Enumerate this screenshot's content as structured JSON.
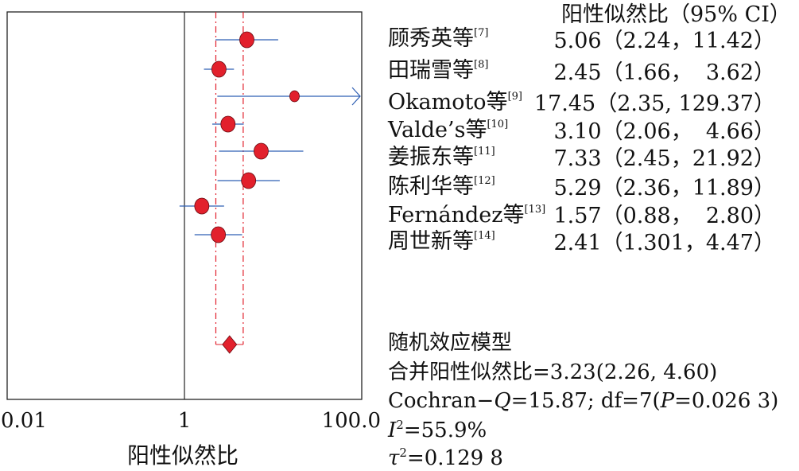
{
  "header": {
    "ci_title": "阳性似然比（95% CI）"
  },
  "xaxis": {
    "label": "阳性似然比",
    "ticks": [
      "0.01",
      "1",
      "100.0"
    ]
  },
  "studies": [
    {
      "name": "顾秀英等",
      "ref": "[7]",
      "plr": "5.06",
      "ci_text": "（2.24，11.42）"
    },
    {
      "name": "田瑞雪等",
      "ref": "[8]",
      "plr": "2.45",
      "ci_text": "（1.66，  3.62）"
    },
    {
      "name": "Okamoto等",
      "ref": "[9]",
      "plr": "17.45",
      "ci_text": "（2.35, 129.37）"
    },
    {
      "name": "Valde’s等",
      "ref": "[10]",
      "plr": "3.10",
      "ci_text": "（2.06，  4.66）"
    },
    {
      "name": "姜振东等",
      "ref": "[11]",
      "plr": "7.33",
      "ci_text": "（2.45，21.92）"
    },
    {
      "name": "陈利华等",
      "ref": "[12]",
      "plr": "5.29",
      "ci_text": "（2.36，11.89）"
    },
    {
      "name": "Fernández等",
      "ref": "[13]",
      "plr": "1.57",
      "ci_text": "（0.88，  2.80）"
    },
    {
      "name": "周世新等",
      "ref": "[14]",
      "plr": "2.41",
      "ci_text": "（1.301，4.47）"
    }
  ],
  "summary": {
    "model": "随机效应模型",
    "pooled_label": "合并阳性似然比",
    "pooled_text": "=3.23(2.26, 4.60)",
    "cochran_text": "Cochran−",
    "q_symbol": "Q",
    "q_text": "=15.87; df=7(",
    "p_symbol": "P",
    "p_text": "=0.026 3)",
    "i2_symbol": "I",
    "i2_text": "=55.9%",
    "tau2_symbol": "τ",
    "tau2_text": "=0.129 8",
    "sq": "2"
  },
  "colors": {
    "marker": "#e2202c",
    "ci_line": "#2f5fb3",
    "pooled_line": "#e2202c",
    "axis": "#222222"
  },
  "chart_data": {
    "type": "scatter",
    "title": "",
    "xlabel": "阳性似然比",
    "ylabel": "",
    "xscale": "log",
    "xlim": [
      0.01,
      100
    ],
    "xticks": [
      0.01,
      1,
      100
    ],
    "reference_line": 1,
    "categories": [
      "顾秀英等",
      "田瑞雪等",
      "Okamoto等",
      "Valde’s等",
      "姜振东等",
      "陈利华等",
      "Fernández等",
      "周世新等"
    ],
    "series": [
      {
        "values": [
          5.06,
          2.45,
          17.45,
          3.1,
          7.33,
          5.29,
          1.57,
          2.41
        ],
        "ci_low": [
          2.24,
          1.66,
          2.35,
          2.06,
          2.45,
          2.36,
          0.88,
          1.301
        ],
        "ci_high": [
          11.42,
          3.62,
          129.37,
          4.66,
          21.92,
          11.89,
          2.8,
          4.47
        ],
        "ci_high_truncated": [
          false,
          false,
          true,
          false,
          false,
          false,
          false,
          false
        ]
      }
    ],
    "pooled": {
      "value": 3.23,
      "ci_low": 2.26,
      "ci_high": 4.6,
      "marker": "diamond"
    },
    "grid": false
  }
}
